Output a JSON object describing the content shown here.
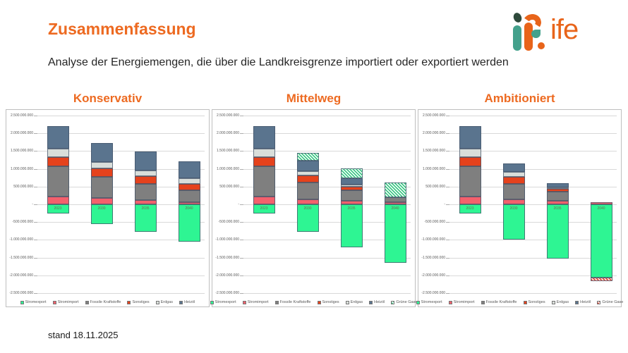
{
  "header": {
    "title": "Zusammenfassung",
    "subtitle": "Analyse der Energiemengen, die über die Landkreisgrenze importiert oder exportiert werden",
    "logo_text": "ife"
  },
  "footer": {
    "stand": "stand 18.11.2025"
  },
  "colors": {
    "accent_orange": "#ED6A21",
    "logo_orange": "#E8641A",
    "logo_teal": "#44A18C",
    "stromexport": "#2EF593",
    "stromimport": "#F4606C",
    "fossile_kraftstoffe": "#7F7F7F",
    "sonstiges": "#E5421C",
    "erdgas": "#D9DEDA",
    "heizoel": "#5A748E",
    "gruene_gase_green": "#2EBD7B",
    "gruene_gase_red": "#E0301E"
  },
  "chart_data": [
    {
      "type": "bar",
      "stacked": true,
      "title": "Konservativ",
      "categories": [
        "2023",
        "2030",
        "2035",
        "2040"
      ],
      "ylim": [
        -2500000000,
        2500000000
      ],
      "ytick_step": 500000000,
      "grid": true,
      "legend_position": "bottom",
      "series": [
        {
          "name": "Stromexport",
          "color": "#2EF593",
          "pattern": null,
          "values": [
            -250000000,
            -550000000,
            -780000000,
            -1060000000
          ]
        },
        {
          "name": "Stromimport",
          "color": "#F4606C",
          "pattern": null,
          "values": [
            210000000,
            170000000,
            120000000,
            65000000
          ]
        },
        {
          "name": "Fossile Kraftstoffe",
          "color": "#7F7F7F",
          "pattern": null,
          "values": [
            860000000,
            600000000,
            450000000,
            335000000
          ]
        },
        {
          "name": "Sonstiges",
          "color": "#E5421C",
          "pattern": null,
          "values": [
            260000000,
            250000000,
            230000000,
            180000000
          ]
        },
        {
          "name": "Erdgas",
          "color": "#D9DEDA",
          "pattern": null,
          "values": [
            230000000,
            170000000,
            150000000,
            150000000
          ]
        },
        {
          "name": "Heizöl",
          "color": "#5A748E",
          "pattern": null,
          "values": [
            640000000,
            540000000,
            530000000,
            480000000
          ]
        }
      ]
    },
    {
      "type": "bar",
      "stacked": true,
      "title": "Mittelweg",
      "categories": [
        "2023",
        "2030",
        "2035",
        "2040"
      ],
      "ylim": [
        -2500000000,
        2500000000
      ],
      "ytick_step": 500000000,
      "grid": true,
      "legend_position": "bottom",
      "series": [
        {
          "name": "Stromexport",
          "color": "#2EF593",
          "pattern": null,
          "values": [
            -250000000,
            -780000000,
            -1210000000,
            -1640000000
          ]
        },
        {
          "name": "Stromimport",
          "color": "#F4606C",
          "pattern": null,
          "values": [
            210000000,
            130000000,
            90000000,
            50000000
          ]
        },
        {
          "name": "Fossile Kraftstoffe",
          "color": "#7F7F7F",
          "pattern": null,
          "values": [
            860000000,
            480000000,
            310000000,
            150000000
          ]
        },
        {
          "name": "Sonstiges",
          "color": "#E5421C",
          "pattern": null,
          "values": [
            260000000,
            210000000,
            90000000,
            0
          ]
        },
        {
          "name": "Erdgas",
          "color": "#D9DEDA",
          "pattern": null,
          "values": [
            230000000,
            120000000,
            60000000,
            0
          ]
        },
        {
          "name": "Heizöl",
          "color": "#5A748E",
          "pattern": null,
          "values": [
            640000000,
            290000000,
            180000000,
            0
          ]
        },
        {
          "name": "Grüne Gase",
          "color": "#2EBD7B",
          "pattern": "green-hatch",
          "values": [
            0,
            210000000,
            290000000,
            420000000
          ]
        }
      ]
    },
    {
      "type": "bar",
      "stacked": true,
      "title": "Ambitioniert",
      "categories": [
        "2023",
        "2030",
        "2035",
        "2040"
      ],
      "ylim": [
        -2500000000,
        2500000000
      ],
      "ytick_step": 500000000,
      "grid": true,
      "legend_position": "bottom",
      "series": [
        {
          "name": "Stromexport",
          "color": "#2EF593",
          "pattern": null,
          "values": [
            -250000000,
            -1000000000,
            -1520000000,
            -2060000000
          ]
        },
        {
          "name": "Stromimport",
          "color": "#F4606C",
          "pattern": null,
          "values": [
            210000000,
            130000000,
            90000000,
            60000000
          ]
        },
        {
          "name": "Fossile Kraftstoffe",
          "color": "#7F7F7F",
          "pattern": null,
          "values": [
            860000000,
            440000000,
            260000000,
            0
          ]
        },
        {
          "name": "Sonstiges",
          "color": "#E5421C",
          "pattern": null,
          "values": [
            260000000,
            200000000,
            90000000,
            0
          ]
        },
        {
          "name": "Erdgas",
          "color": "#D9DEDA",
          "pattern": null,
          "values": [
            230000000,
            140000000,
            30000000,
            0
          ]
        },
        {
          "name": "Heizöl",
          "color": "#5A748E",
          "pattern": null,
          "values": [
            640000000,
            250000000,
            120000000,
            0
          ]
        },
        {
          "name": "Grüne Gase",
          "color": "#E0301E",
          "pattern": "red-hatch",
          "values": [
            0,
            0,
            0,
            -110000000
          ]
        }
      ]
    }
  ]
}
